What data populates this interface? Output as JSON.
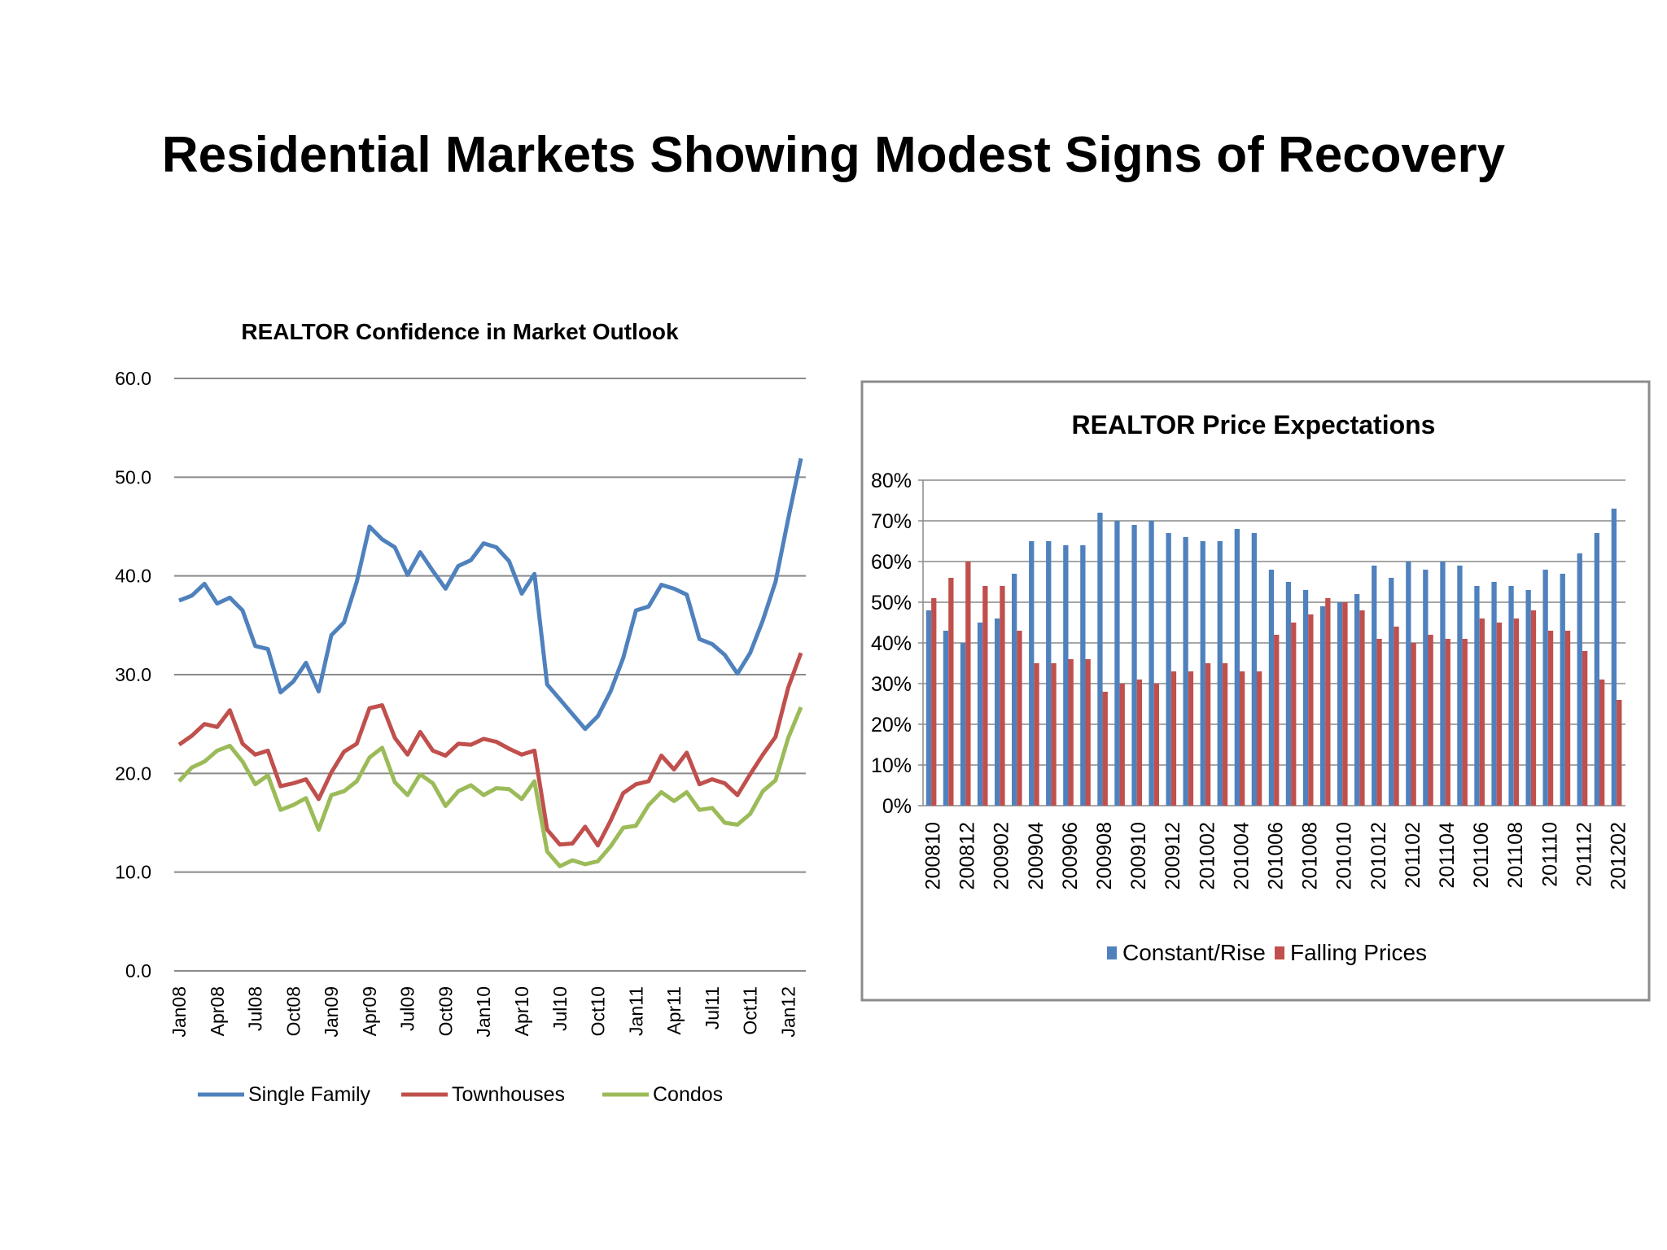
{
  "slide": {
    "title": "Residential Markets Showing Modest Signs of Recovery"
  },
  "chart_data": [
    {
      "type": "line",
      "title": "REALTOR Confidence in Market Outlook",
      "xlabel": "",
      "ylabel": "",
      "ylim": [
        0,
        60
      ],
      "yticks": [
        "0.0",
        "10.0",
        "20.0",
        "30.0",
        "40.0",
        "50.0",
        "60.0"
      ],
      "x_tick_labels": [
        "Jan08",
        "Apr08",
        "Jul08",
        "Oct08",
        "Jan09",
        "Apr09",
        "Jul09",
        "Oct09",
        "Jan10",
        "Apr10",
        "Jul10",
        "Oct10",
        "Jan11",
        "Apr11",
        "Jul11",
        "Oct11",
        "Jan12"
      ],
      "grid": true,
      "legend": "bottom",
      "series": [
        {
          "name": "Single Family",
          "color": "#4F81BD",
          "values": [
            37.5,
            38.0,
            39.2,
            37.2,
            37.8,
            36.5,
            32.9,
            32.6,
            28.2,
            29.3,
            31.2,
            28.3,
            34.0,
            35.3,
            39.4,
            45.0,
            43.7,
            42.9,
            40.1,
            42.4,
            40.5,
            38.7,
            41.0,
            41.6,
            43.3,
            42.9,
            41.5,
            38.2,
            40.2,
            29.0,
            27.5,
            26.0,
            24.5,
            25.8,
            28.3,
            31.7,
            36.5,
            36.9,
            39.1,
            38.7,
            38.1,
            33.6,
            33.1,
            32.0,
            30.1,
            32.2,
            35.5,
            39.4,
            45.8,
            51.9
          ]
        },
        {
          "name": "Townhouses",
          "color": "#C0504D",
          "values": [
            22.9,
            23.8,
            25.0,
            24.7,
            26.4,
            23.0,
            21.9,
            22.3,
            18.7,
            19.0,
            19.4,
            17.4,
            20.1,
            22.2,
            23.0,
            26.6,
            26.9,
            23.6,
            21.9,
            24.2,
            22.3,
            21.8,
            23.0,
            22.9,
            23.5,
            23.2,
            22.5,
            21.9,
            22.3,
            14.3,
            12.8,
            12.9,
            14.6,
            12.7,
            15.2,
            18.0,
            18.9,
            19.2,
            21.8,
            20.4,
            22.1,
            18.9,
            19.4,
            19.0,
            17.8,
            19.9,
            21.9,
            23.7,
            28.7,
            32.2
          ]
        },
        {
          "name": "Condos",
          "color": "#9BBB59",
          "values": [
            19.2,
            20.6,
            21.2,
            22.3,
            22.8,
            21.2,
            18.9,
            19.8,
            16.3,
            16.8,
            17.5,
            14.3,
            17.8,
            18.2,
            19.2,
            21.6,
            22.6,
            19.1,
            17.8,
            19.9,
            19.0,
            16.7,
            18.2,
            18.8,
            17.8,
            18.5,
            18.4,
            17.4,
            19.2,
            12.1,
            10.6,
            11.2,
            10.8,
            11.1,
            12.6,
            14.5,
            14.7,
            16.8,
            18.1,
            17.2,
            18.1,
            16.3,
            16.5,
            15.0,
            14.8,
            15.9,
            18.2,
            19.3,
            23.6,
            26.7
          ]
        }
      ]
    },
    {
      "type": "bar",
      "title": "REALTOR Price Expectations",
      "xlabel": "",
      "ylabel": "",
      "ylim": [
        0,
        80
      ],
      "yticks": [
        "0%",
        "10%",
        "20%",
        "30%",
        "40%",
        "50%",
        "60%",
        "70%",
        "80%"
      ],
      "x_tick_labels": [
        "200810",
        "200812",
        "200902",
        "200904",
        "200906",
        "200908",
        "200910",
        "200912",
        "201002",
        "201004",
        "201006",
        "201008",
        "201010",
        "201012",
        "201102",
        "201104",
        "201106",
        "201108",
        "201110",
        "201112",
        "201202"
      ],
      "categories": [
        "200810",
        "200811",
        "200812",
        "200901",
        "200902",
        "200903",
        "200904",
        "200905",
        "200906",
        "200907",
        "200908",
        "200909",
        "200910",
        "200911",
        "200912",
        "201001",
        "201002",
        "201003",
        "201004",
        "201005",
        "201006",
        "201007",
        "201008",
        "201009",
        "201010",
        "201011",
        "201012",
        "201101",
        "201102",
        "201103",
        "201104",
        "201105",
        "201106",
        "201107",
        "201108",
        "201109",
        "201110",
        "201111",
        "201112",
        "201201",
        "201202"
      ],
      "grid": true,
      "legend": "bottom",
      "series": [
        {
          "name": "Constant/Rise",
          "color": "#4F81BD",
          "values": [
            48,
            43,
            40,
            45,
            46,
            57,
            65,
            65,
            64,
            64,
            72,
            70,
            69,
            70,
            67,
            66,
            65,
            65,
            68,
            67,
            58,
            55,
            53,
            49,
            50,
            52,
            59,
            56,
            60,
            58,
            60,
            59,
            54,
            55,
            54,
            53,
            58,
            57,
            62,
            67,
            73
          ]
        },
        {
          "name": "Falling Prices",
          "color": "#C0504D",
          "values": [
            51,
            56,
            60,
            54,
            54,
            43,
            35,
            35,
            36,
            36,
            28,
            30,
            31,
            30,
            33,
            33,
            35,
            35,
            33,
            33,
            42,
            45,
            47,
            51,
            50,
            48,
            41,
            44,
            40,
            42,
            41,
            41,
            46,
            45,
            46,
            48,
            43,
            43,
            38,
            31,
            26
          ]
        }
      ]
    }
  ]
}
